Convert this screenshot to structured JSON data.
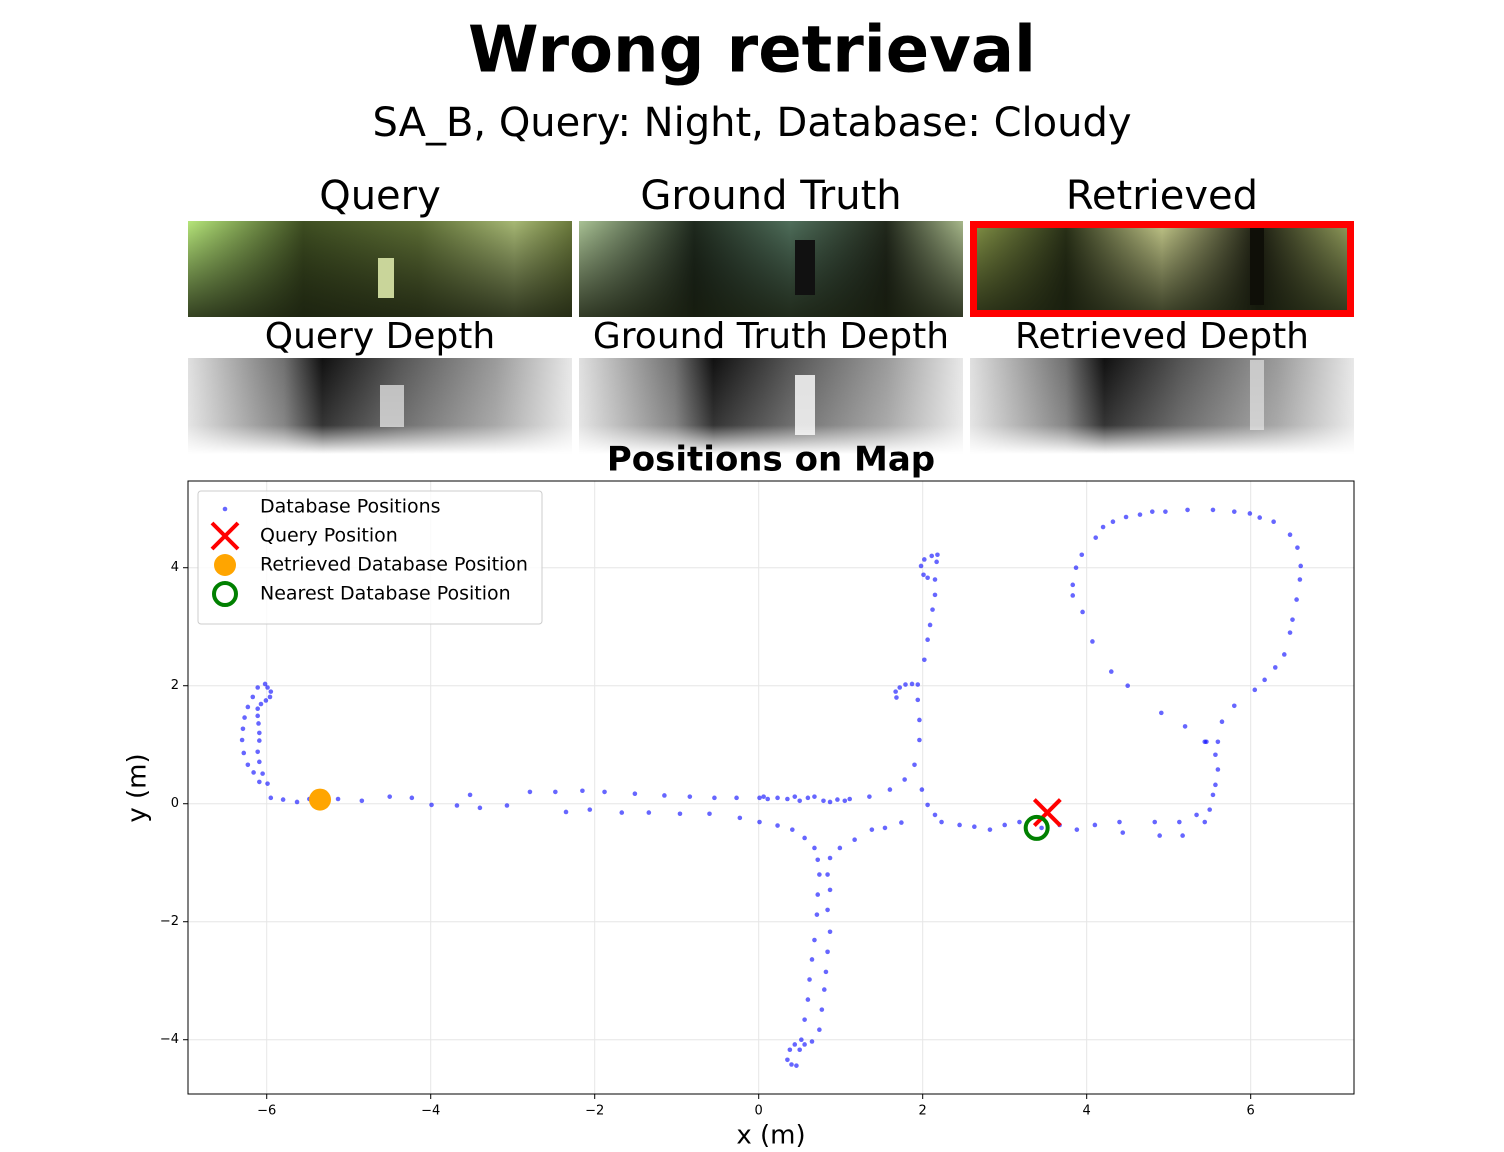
{
  "title": "Wrong retrieval",
  "subtitle": "SA_B, Query: Night, Database: Cloudy",
  "panels": [
    {
      "title": "Query",
      "depth_title": "Query Depth"
    },
    {
      "title": "Ground Truth",
      "depth_title": "Ground Truth Depth"
    },
    {
      "title": "Retrieved",
      "depth_title": "Retrieved Depth"
    }
  ],
  "chart_data": {
    "type": "scatter",
    "title": "Positions on Map",
    "x_label": "x (m)",
    "y_label": "y (m)",
    "xlim": [
      -6.96,
      7.26
    ],
    "ylim": [
      -4.92,
      5.47
    ],
    "xticks": [
      {
        "value": -6,
        "label": "−6"
      },
      {
        "value": -4,
        "label": "−4"
      },
      {
        "value": -2,
        "label": "−2"
      },
      0,
      2,
      4,
      6
    ],
    "yticks": [
      {
        "value": -4,
        "label": "−4"
      },
      {
        "value": -2,
        "label": "−2"
      },
      0,
      2,
      4
    ],
    "grid": true,
    "legend": "upper left",
    "series": [
      {
        "name": "Database Positions",
        "color": "#0000ff",
        "marker": "dot",
        "x": [
          -6.02,
          -5.99,
          -5.95,
          -5.96,
          -6.01,
          -6.07,
          -6.11,
          -6.11,
          -6.1,
          -6.09,
          -6.09,
          -6.11,
          -6.09,
          -6.05,
          -5.99,
          -5.95,
          -6.11,
          -6.17,
          -6.23,
          -6.27,
          -6.29,
          -6.3,
          -6.28,
          -6.23,
          -6.16,
          -6.09,
          -5.8,
          -5.63,
          -5.48,
          -5.13,
          -4.84,
          -4.5,
          -4.23,
          -3.99,
          -3.68,
          -3.52,
          -3.4,
          -3.07,
          -2.79,
          -2.48,
          -2.35,
          -2.15,
          -2.06,
          -1.88,
          -1.67,
          -1.51,
          -1.34,
          -1.15,
          -0.96,
          -0.84,
          -0.6,
          -0.54,
          -0.27,
          -0.23,
          0.01,
          0.06,
          0.11,
          0.23,
          0.35,
          0.44,
          0.5,
          0.6,
          0.68,
          0.79,
          0.87,
          0.96,
          1.05,
          1.11,
          0.01,
          0.23,
          0.41,
          0.56,
          0.68,
          0.72,
          0.74,
          0.72,
          0.71,
          0.68,
          0.65,
          0.62,
          0.6,
          0.56,
          0.52,
          0.5,
          0.44,
          0.38,
          0.35,
          0.4,
          0.46,
          0.87,
          0.84,
          0.87,
          0.84,
          0.87,
          0.84,
          0.82,
          0.8,
          0.77,
          0.74,
          0.65,
          0.56,
          0.99,
          1.17,
          1.38,
          1.54,
          1.74,
          1.35,
          1.6,
          1.78,
          1.9,
          1.96,
          1.96,
          1.94,
          1.68,
          1.67,
          1.72,
          1.79,
          1.87,
          1.94,
          2.02,
          2.06,
          2.09,
          2.12,
          2.15,
          2.15,
          2.01,
          1.98,
          2.02,
          2.11,
          2.18,
          2.17,
          2.06,
          1.99,
          2.06,
          2.15,
          2.23,
          2.45,
          2.63,
          2.82,
          3.0,
          3.18,
          3.45,
          3.67,
          3.88,
          4.1,
          4.4,
          4.44,
          4.83,
          4.89,
          5.13,
          5.17,
          5.34,
          5.44,
          5.5,
          5.54,
          5.57,
          5.6,
          5.57,
          5.46,
          5.2,
          4.91,
          4.5,
          4.3,
          4.07,
          3.95,
          3.83,
          3.83,
          3.87,
          3.94,
          4.11,
          4.2,
          4.32,
          4.48,
          4.65,
          4.8,
          4.96,
          5.23,
          5.54,
          5.8,
          5.99,
          6.11,
          6.28,
          6.48,
          6.57,
          6.61,
          6.6,
          6.56,
          6.51,
          6.48,
          6.41,
          6.3,
          6.17,
          6.05,
          5.8,
          5.65,
          5.6,
          5.44
        ],
        "values": [
          2.03,
          1.97,
          1.9,
          1.81,
          1.75,
          1.69,
          1.61,
          1.49,
          1.36,
          1.2,
          1.07,
          0.88,
          0.71,
          0.51,
          0.34,
          0.1,
          1.97,
          1.81,
          1.64,
          1.46,
          1.27,
          1.08,
          0.86,
          0.66,
          0.53,
          0.37,
          0.07,
          0.03,
          0.08,
          0.08,
          0.05,
          0.12,
          0.1,
          -0.02,
          -0.03,
          0.15,
          -0.07,
          -0.03,
          0.2,
          0.2,
          -0.14,
          0.22,
          -0.1,
          0.2,
          -0.15,
          0.17,
          -0.15,
          0.14,
          -0.17,
          0.12,
          -0.17,
          0.1,
          0.1,
          -0.24,
          0.1,
          0.12,
          0.08,
          0.1,
          0.08,
          0.12,
          0.05,
          0.1,
          0.12,
          0.05,
          0.03,
          0.07,
          0.05,
          0.08,
          -0.31,
          -0.37,
          -0.44,
          -0.58,
          -0.75,
          -0.95,
          -1.2,
          -1.54,
          -1.88,
          -2.31,
          -2.64,
          -2.98,
          -3.32,
          -3.66,
          -4.0,
          -4.17,
          -4.08,
          -4.17,
          -4.34,
          -4.42,
          -4.44,
          -0.92,
          -1.2,
          -1.46,
          -1.8,
          -2.17,
          -2.51,
          -2.85,
          -3.15,
          -3.49,
          -3.83,
          -4.03,
          -4.08,
          -0.75,
          -0.61,
          -0.44,
          -0.41,
          -0.32,
          0.12,
          0.24,
          0.41,
          0.66,
          1.08,
          1.42,
          1.76,
          1.8,
          1.9,
          1.97,
          2.02,
          2.03,
          2.02,
          2.44,
          2.78,
          3.03,
          3.29,
          3.54,
          3.8,
          3.88,
          4.03,
          4.14,
          4.2,
          4.22,
          4.1,
          3.83,
          0.24,
          -0.02,
          -0.19,
          -0.31,
          -0.36,
          -0.39,
          -0.44,
          -0.36,
          -0.31,
          -0.41,
          -0.36,
          -0.44,
          -0.36,
          -0.31,
          -0.49,
          -0.31,
          -0.54,
          -0.31,
          -0.54,
          -0.19,
          -0.31,
          -0.1,
          0.15,
          0.32,
          0.58,
          0.83,
          1.05,
          1.31,
          1.54,
          2.0,
          2.24,
          2.75,
          3.25,
          3.53,
          3.71,
          4.0,
          4.22,
          4.51,
          4.69,
          4.78,
          4.86,
          4.9,
          4.95,
          4.95,
          4.98,
          4.98,
          4.95,
          4.92,
          4.85,
          4.78,
          4.56,
          4.34,
          4.03,
          3.8,
          3.46,
          3.12,
          2.9,
          2.53,
          2.31,
          2.1,
          1.93,
          1.66,
          1.39,
          1.05,
          1.05
        ]
      },
      {
        "name": "Query Position",
        "color": "#ff0000",
        "marker": "x",
        "x": [
          3.52
        ],
        "values": [
          -0.15
        ]
      },
      {
        "name": "Retrieved Database Position",
        "color": "#ffa500",
        "marker": "circle",
        "x": [
          -5.35
        ],
        "values": [
          0.07
        ]
      },
      {
        "name": "Nearest Database Position",
        "color": "#008000",
        "marker": "ring",
        "x": [
          3.39
        ],
        "values": [
          -0.41
        ]
      }
    ]
  }
}
